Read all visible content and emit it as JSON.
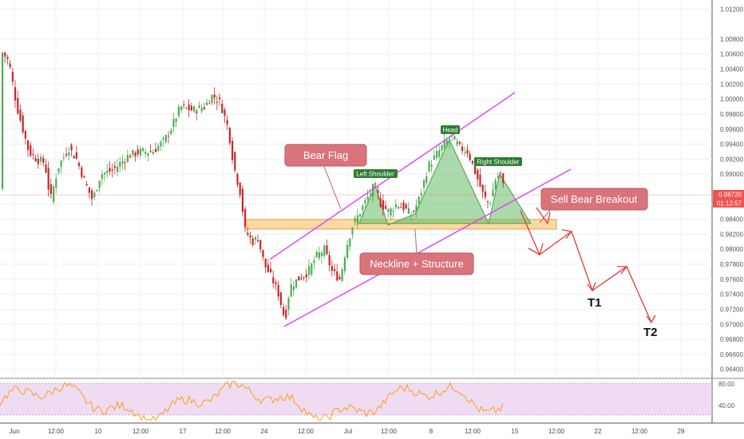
{
  "chart_data": [
    {
      "type": "candlestick",
      "y_ticks": [
        "1.01200",
        "1.00800",
        "1.00600",
        "1.00400",
        "1.00200",
        "1.00000",
        "0.99800",
        "0.99600",
        "0.99400",
        "0.99200",
        "0.99000",
        "0.98600",
        "0.98400",
        "0.98200",
        "0.98000",
        "0.97800",
        "0.97600",
        "0.97400",
        "0.97200",
        "0.97000",
        "0.96800",
        "0.96600",
        "0.96400"
      ],
      "y_tick_values": [
        1.012,
        1.008,
        1.006,
        1.004,
        1.002,
        1.0,
        0.998,
        0.996,
        0.994,
        0.992,
        0.99,
        0.986,
        0.984,
        0.982,
        0.98,
        0.978,
        0.976,
        0.974,
        0.972,
        0.97,
        0.968,
        0.966,
        0.964
      ],
      "x_ticks": [
        "Jun",
        "12:00",
        "10",
        "12:00",
        "17",
        "12:00",
        "24",
        "12:00",
        "Jul",
        "12:00",
        "8",
        "12:00",
        "15",
        "12:00",
        "22",
        "12:00",
        "29"
      ],
      "ylim": [
        0.9628,
        1.0132
      ],
      "last_price": "0.98720",
      "last_price_value": 0.9872,
      "countdown": "01:12:57",
      "colors": {
        "up": "#4caf50",
        "down": "#c62828",
        "channel": "#e040fb",
        "zone": "#ffcc80",
        "pattern": "#66bb6a",
        "callout": "#d9747a",
        "arrow": "#e53935",
        "price_tag": "#ef5350"
      },
      "annotations": {
        "bear_flag": "Bear Flag",
        "neckline": "Neckline + Structure",
        "sell": "Sell Bear Breakout",
        "left_shoulder": "Left Shoulder",
        "head": "Head",
        "right_shoulder": "Right Shoulder",
        "t1": "T1",
        "t2": "T2"
      }
    },
    {
      "type": "line",
      "indicator": "oscillator",
      "y_ticks": [
        "80.00",
        "40.00"
      ],
      "band": [
        30,
        80
      ],
      "line_color": "#ff9800",
      "band_color": "#e1bee7"
    }
  ]
}
